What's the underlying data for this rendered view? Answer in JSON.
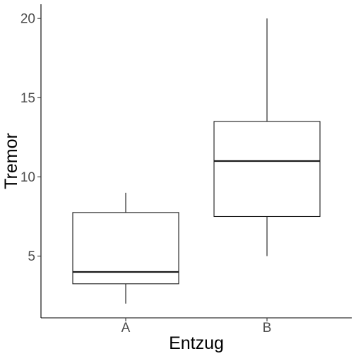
{
  "chart_data": {
    "type": "boxplot",
    "xlabel": "Entzug",
    "ylabel": "Tremor",
    "ylim": [
      1.1,
      20.9
    ],
    "yticks": [
      5,
      10,
      15,
      20
    ],
    "grid": false,
    "categories": [
      "A",
      "B"
    ],
    "boxes": [
      {
        "category": "A",
        "min": 2,
        "q1": 3.25,
        "median": 4,
        "q3": 7.75,
        "max": 9
      },
      {
        "category": "B",
        "min": 5,
        "q1": 7.5,
        "median": 11,
        "q3": 13.5,
        "max": 20
      }
    ]
  },
  "colors": {
    "box_fill": "#ffffff",
    "box_stroke": "#1a1a1a",
    "axis": "#000000",
    "tick_text": "#4d4d4d"
  }
}
